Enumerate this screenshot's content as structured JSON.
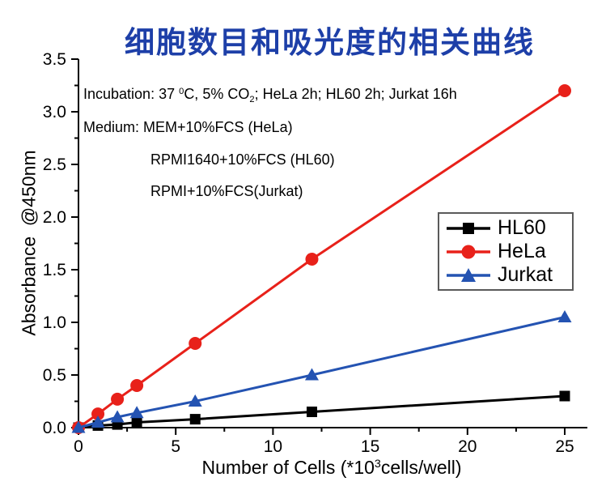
{
  "title": {
    "text": "细胞数目和吸光度的相关曲线",
    "color": "#1d3fa8"
  },
  "annotations": {
    "incubation_parts": [
      {
        "t": "Incubation: 37 "
      },
      {
        "t": "0",
        "sup": true
      },
      {
        "t": "C, 5% CO"
      },
      {
        "t": "2",
        "sub": true
      },
      {
        "t": "; HeLa 2h; HL60 2h; Jurkat 16h"
      }
    ],
    "medium_lines": [
      "Medium: MEM+10%FCS (HeLa)",
      "RPMI1640+10%FCS (HL60)",
      "RPMI+10%FCS(Jurkat)"
    ]
  },
  "axis_labels": {
    "y_label": "Absorbance  @450nm",
    "x_label_parts": [
      {
        "t": "Number of Cells (*10"
      },
      {
        "t": "3",
        "sup": true
      },
      {
        "t": "cells/well)"
      }
    ]
  },
  "chart_data": {
    "type": "line",
    "title": "细胞数目和吸光度的相关曲线",
    "xlabel": "Number of Cells (*10^3 cells/well)",
    "ylabel": "Absorbance @450nm",
    "x": [
      0,
      1,
      2,
      3,
      6,
      12,
      25
    ],
    "series": [
      {
        "name": "HL60",
        "color": "#000000",
        "marker": "square",
        "values": [
          0,
          0.02,
          0.03,
          0.05,
          0.08,
          0.15,
          0.3
        ]
      },
      {
        "name": "HeLa",
        "color": "#e8211a",
        "marker": "circle",
        "values": [
          0,
          0.13,
          0.27,
          0.4,
          0.8,
          1.6,
          3.2
        ]
      },
      {
        "name": "Jurkat",
        "color": "#2453b2",
        "marker": "triangle",
        "values": [
          0,
          0.05,
          0.1,
          0.14,
          0.25,
          0.5,
          1.05
        ]
      }
    ],
    "xlim": [
      0,
      25
    ],
    "ylim": [
      0,
      3.5
    ],
    "x_major_ticks": [
      0,
      5,
      10,
      15,
      20,
      25
    ],
    "x_minor_step": 2.5,
    "y_major_step": 0.5,
    "y_minor_step": 0.25,
    "grid": false,
    "legend_position": "right-middle",
    "axis_color": "#000000"
  }
}
